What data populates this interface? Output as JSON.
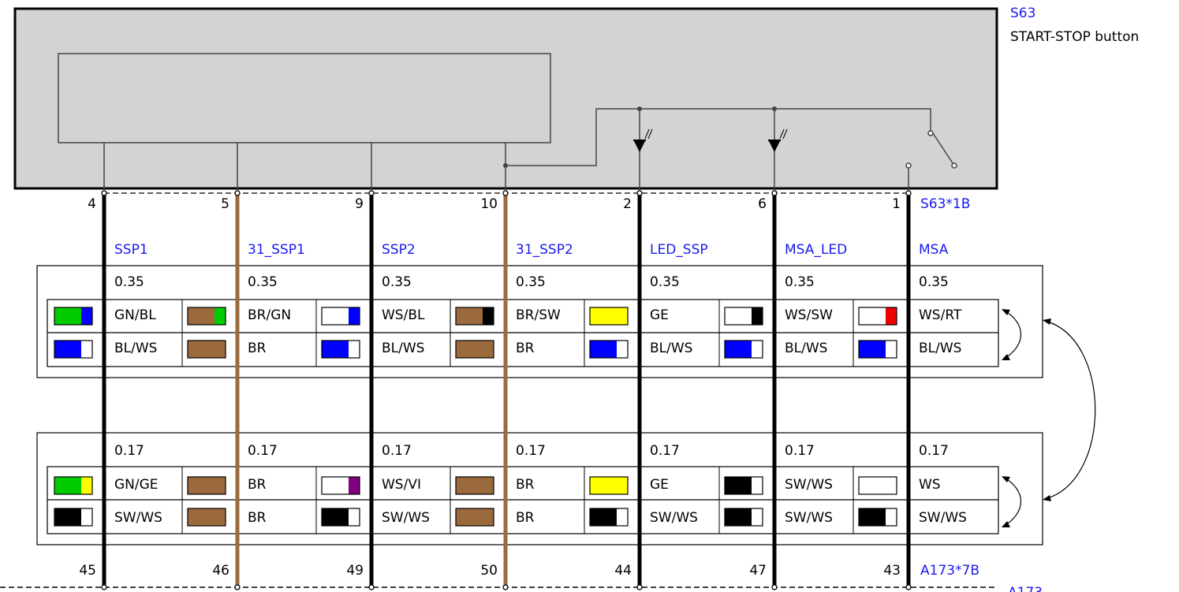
{
  "component": {
    "id": "S63",
    "name": "START-STOP button",
    "connector_top": "S63*1B",
    "connector_bottom": "A173*7B",
    "module_bottom": "A173"
  },
  "wires": [
    {
      "signal": "SSP1",
      "pin_top": "4",
      "pin_bottom": "45",
      "main_color": "#000000",
      "upper": {
        "size": "0.35",
        "codes": [
          "GN/BL",
          "BL/WS"
        ]
      },
      "lower": {
        "size": "0.17",
        "codes": [
          "GN/GE",
          "SW/WS"
        ]
      }
    },
    {
      "signal": "31_SSP1",
      "pin_top": "5",
      "pin_bottom": "46",
      "main_color": "#9a6a3c",
      "upper": {
        "size": "0.35",
        "codes": [
          "BR/GN",
          "BR"
        ]
      },
      "lower": {
        "size": "0.17",
        "codes": [
          "BR",
          "BR"
        ]
      }
    },
    {
      "signal": "SSP2",
      "pin_top": "9",
      "pin_bottom": "49",
      "main_color": "#000000",
      "upper": {
        "size": "0.35",
        "codes": [
          "WS/BL",
          "BL/WS"
        ]
      },
      "lower": {
        "size": "0.17",
        "codes": [
          "WS/VI",
          "SW/WS"
        ]
      }
    },
    {
      "signal": "31_SSP2",
      "pin_top": "10",
      "pin_bottom": "50",
      "main_color": "#9a6a3c",
      "upper": {
        "size": "0.35",
        "codes": [
          "BR/SW",
          "BR"
        ]
      },
      "lower": {
        "size": "0.17",
        "codes": [
          "BR",
          "BR"
        ]
      }
    },
    {
      "signal": "LED_SSP",
      "pin_top": "2",
      "pin_bottom": "44",
      "main_color": "#000000",
      "upper": {
        "size": "0.35",
        "codes": [
          "GE",
          "BL/WS"
        ]
      },
      "lower": {
        "size": "0.17",
        "codes": [
          "GE",
          "SW/WS"
        ]
      }
    },
    {
      "signal": "MSA_LED",
      "pin_top": "6",
      "pin_bottom": "47",
      "main_color": "#000000",
      "upper": {
        "size": "0.35",
        "codes": [
          "WS/SW",
          "BL/WS"
        ]
      },
      "lower": {
        "size": "0.17",
        "codes": [
          "SW/WS",
          "SW/WS"
        ]
      }
    },
    {
      "signal": "MSA",
      "pin_top": "1",
      "pin_bottom": "43",
      "main_color": "#000000",
      "upper": {
        "size": "0.35",
        "codes": [
          "WS/RT",
          "BL/WS"
        ]
      },
      "lower": {
        "size": "0.17",
        "codes": [
          "WS",
          "SW/WS"
        ]
      }
    }
  ],
  "color_codes": {
    "GN": "#00cc00",
    "BL": "#0000ff",
    "BR": "#9a6a3c",
    "WS": "#ffffff",
    "SW": "#000000",
    "GE": "#ffff00",
    "RT": "#ee0000",
    "VI": "#800080"
  }
}
